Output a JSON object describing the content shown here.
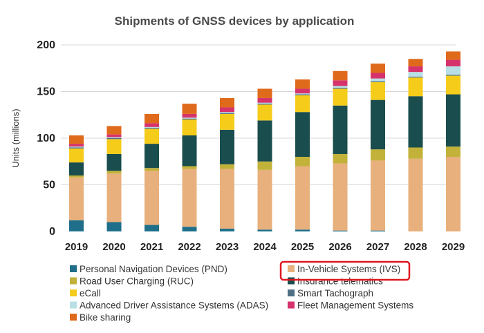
{
  "chart_data": {
    "type": "bar",
    "stacked": true,
    "title": "Shipments of GNSS devices by application",
    "xlabel": "",
    "ylabel": "Units (millions)",
    "ylim": [
      0,
      200
    ],
    "yticks": [
      "0",
      "50",
      "100",
      "150",
      "200"
    ],
    "grid": "horizontal",
    "legend_position": "bottom",
    "categories": [
      "2019",
      "2020",
      "2021",
      "2022",
      "2023",
      "2024",
      "2025",
      "2026",
      "2027",
      "2028",
      "2029"
    ],
    "series": [
      {
        "name": "Personal Navigation Devices (PND)",
        "color": "#1f6f8b",
        "values": [
          12,
          10,
          7,
          5,
          3,
          2,
          2,
          1,
          1,
          0,
          0
        ]
      },
      {
        "name": "In-Vehicle Systems (IVS)",
        "color": "#e8b07c",
        "values": [
          46,
          52,
          58,
          62,
          64,
          64,
          68,
          72,
          75,
          78,
          80
        ]
      },
      {
        "name": "Road User Charging (RUC)",
        "color": "#c3b23a",
        "values": [
          2,
          3,
          3,
          3,
          5,
          9,
          10,
          10,
          12,
          12,
          11
        ]
      },
      {
        "name": "Insurance telematics",
        "color": "#1a4d4d",
        "values": [
          14,
          18,
          26,
          33,
          37,
          44,
          48,
          52,
          53,
          55,
          56
        ]
      },
      {
        "name": "eCall",
        "color": "#f5cc1a",
        "values": [
          15,
          16,
          16,
          17,
          17,
          17,
          18,
          18,
          19,
          20,
          20
        ]
      },
      {
        "name": "Smart Tachograph",
        "color": "#4f6f86",
        "values": [
          1,
          1,
          1,
          1,
          1,
          1,
          1,
          1,
          1,
          1,
          1
        ]
      },
      {
        "name": "Advanced Driver Assistance Systems (ADAS)",
        "color": "#b8dfe6",
        "values": [
          1,
          1,
          1,
          1,
          1,
          1,
          1,
          2,
          3,
          5,
          9
        ]
      },
      {
        "name": "Fleet Management Systems",
        "color": "#d6336c",
        "values": [
          3,
          3,
          4,
          4,
          5,
          5,
          5,
          6,
          6,
          6,
          7
        ]
      },
      {
        "name": "Bike sharing",
        "color": "#e06a1b",
        "values": [
          9,
          9,
          10,
          11,
          10,
          10,
          10,
          10,
          10,
          8,
          9
        ]
      }
    ],
    "highlight": {
      "series": "In-Vehicle Systems (IVS)",
      "color": "#e0161e"
    }
  }
}
